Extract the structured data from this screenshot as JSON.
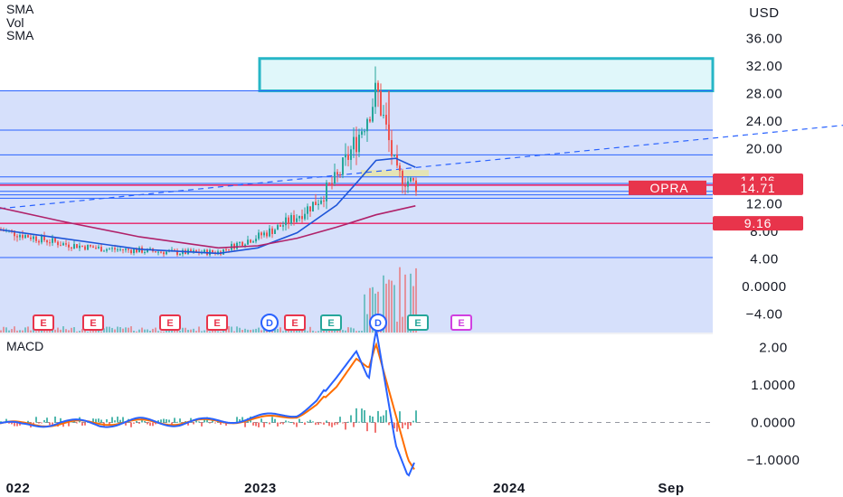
{
  "legend": {
    "main": [
      "SMA",
      "Vol",
      "SMA"
    ],
    "macd": "MACD"
  },
  "colors": {
    "background": "#ffffff",
    "zone": "#d6e0fb",
    "supply_zone": "#e0f7fa",
    "supply_border": "#26b6c6",
    "level_line": "#2962ff",
    "red_level": "#e91e63",
    "price_line": "#2962ff",
    "sma_fast": "#1e55d8",
    "sma_slow": "#b0226a",
    "up": "#26a69a",
    "down": "#ef5350",
    "macd_line": "#2962ff",
    "signal_line": "#ff6d00",
    "badge_red": "#e8344b",
    "event_e": "#e8344b",
    "event_d": "#2962ff",
    "event_green": "#26a69a",
    "event_purple": "#d040e0"
  },
  "price_axis": {
    "currency_label": "USD",
    "ticks": [
      "36.00",
      "32.00",
      "28.00",
      "24.00",
      "20.00",
      "12.00",
      "8.00",
      "4.00",
      "0.0000",
      "−4.00"
    ],
    "tick_values": [
      36,
      32,
      28,
      24,
      20,
      12,
      8,
      4,
      0,
      -4
    ]
  },
  "macd_axis": {
    "ticks": [
      "2.00",
      "1.0000",
      "0.0000",
      "−1.0000"
    ],
    "tick_values": [
      2,
      1,
      0,
      -1
    ]
  },
  "time_axis": {
    "labels": [
      "022",
      "2023",
      "2024",
      "Sep"
    ]
  },
  "badges": [
    {
      "symbol": "",
      "value": "14.96",
      "price": 14.96
    },
    {
      "symbol": "OPRA",
      "value": "14.71",
      "price": 14.71
    },
    {
      "symbol": "",
      "value": "9.16",
      "price": 9.16
    }
  ],
  "events": [
    "E",
    "E",
    "E",
    "E",
    "D",
    "E",
    "E",
    "D",
    "E",
    "E"
  ],
  "chart_data": {
    "type": "candlestick",
    "symbol": "OPRA",
    "currency": "USD",
    "price_ylim": [
      -5,
      40
    ],
    "macd_ylim": [
      -1.5,
      2.6
    ],
    "horizontal_levels": [
      4.2,
      12.8,
      13.3,
      13.8,
      14.71,
      14.96,
      15.9,
      19.1,
      22.7,
      28.4
    ],
    "red_levels": [
      9.16,
      14.71
    ],
    "supply_zone": [
      28.4,
      33.1
    ],
    "demand_box": [
      16.0,
      16.9
    ],
    "trendline": {
      "from": 11.3,
      "to": 23.4
    },
    "price_series": [
      {
        "date": "2021-11",
        "price": 8.8
      },
      {
        "date": "2022-01",
        "price": 7.5
      },
      {
        "date": "2022-03",
        "price": 6.2
      },
      {
        "date": "2022-05",
        "price": 5.5
      },
      {
        "date": "2022-07",
        "price": 5.2
      },
      {
        "date": "2022-09",
        "price": 4.9
      },
      {
        "date": "2022-11",
        "price": 5.0
      },
      {
        "date": "2022-12",
        "price": 6.3
      },
      {
        "date": "2023-01",
        "price": 7.3
      },
      {
        "date": "2023-02",
        "price": 8.6
      },
      {
        "date": "2023-03",
        "price": 10.3
      },
      {
        "date": "2023-04",
        "price": 12.5
      },
      {
        "date": "2023-05",
        "price": 15.8
      },
      {
        "date": "2023-06",
        "price": 21.5
      },
      {
        "date": "2023-07",
        "price": 28.4
      },
      {
        "date": "2023-08",
        "price": 16.2
      },
      {
        "date": "2023-09",
        "price": 14.71
      }
    ],
    "sma_fast": [
      {
        "date": "2021-11",
        "value": 8.6
      },
      {
        "date": "2022-03",
        "value": 7.0
      },
      {
        "date": "2022-07",
        "value": 5.4
      },
      {
        "date": "2022-11",
        "value": 4.8
      },
      {
        "date": "2023-01",
        "value": 5.6
      },
      {
        "date": "2023-03",
        "value": 7.8
      },
      {
        "date": "2023-05",
        "value": 11.8
      },
      {
        "date": "2023-06",
        "value": 15.0
      },
      {
        "date": "2023-07",
        "value": 18.3
      },
      {
        "date": "2023-08",
        "value": 18.6
      },
      {
        "date": "2023-09",
        "value": 17.3
      }
    ],
    "sma_slow": [
      {
        "date": "2021-11",
        "value": 12.0
      },
      {
        "date": "2022-03",
        "value": 9.5
      },
      {
        "date": "2022-07",
        "value": 7.2
      },
      {
        "date": "2022-11",
        "value": 5.6
      },
      {
        "date": "2023-01",
        "value": 5.9
      },
      {
        "date": "2023-03",
        "value": 7.0
      },
      {
        "date": "2023-05",
        "value": 8.6
      },
      {
        "date": "2023-07",
        "value": 10.4
      },
      {
        "date": "2023-09",
        "value": 11.7
      }
    ],
    "macd": [
      {
        "date": "2021-11",
        "macd": 0.05,
        "signal": 0.0
      },
      {
        "date": "2022-01",
        "macd": -0.1,
        "signal": -0.05
      },
      {
        "date": "2022-03",
        "macd": 0.02,
        "signal": -0.03
      },
      {
        "date": "2022-05",
        "macd": -0.05,
        "signal": 0.0
      },
      {
        "date": "2022-07",
        "macd": 0.04,
        "signal": 0.01
      },
      {
        "date": "2022-09",
        "macd": -0.02,
        "signal": 0.0
      },
      {
        "date": "2022-11",
        "macd": 0.05,
        "signal": 0.03
      },
      {
        "date": "2023-01",
        "macd": 0.12,
        "signal": 0.08
      },
      {
        "date": "2023-03",
        "macd": 0.25,
        "signal": 0.2
      },
      {
        "date": "2023-04",
        "macd": 0.55,
        "signal": 0.45
      },
      {
        "date": "2023-05",
        "macd": 1.2,
        "signal": 0.95
      },
      {
        "date": "2023-06",
        "macd": 1.9,
        "signal": 1.7
      },
      {
        "date": "2023-06-20",
        "macd": 1.15,
        "signal": 1.45
      },
      {
        "date": "2023-07",
        "macd": 2.5,
        "signal": 2.1
      },
      {
        "date": "2023-08",
        "macd": -0.6,
        "signal": 0.2
      },
      {
        "date": "2023-08-20",
        "macd": -1.45,
        "signal": -1.0
      },
      {
        "date": "2023-09",
        "macd": -1.0,
        "signal": -1.3
      }
    ]
  }
}
